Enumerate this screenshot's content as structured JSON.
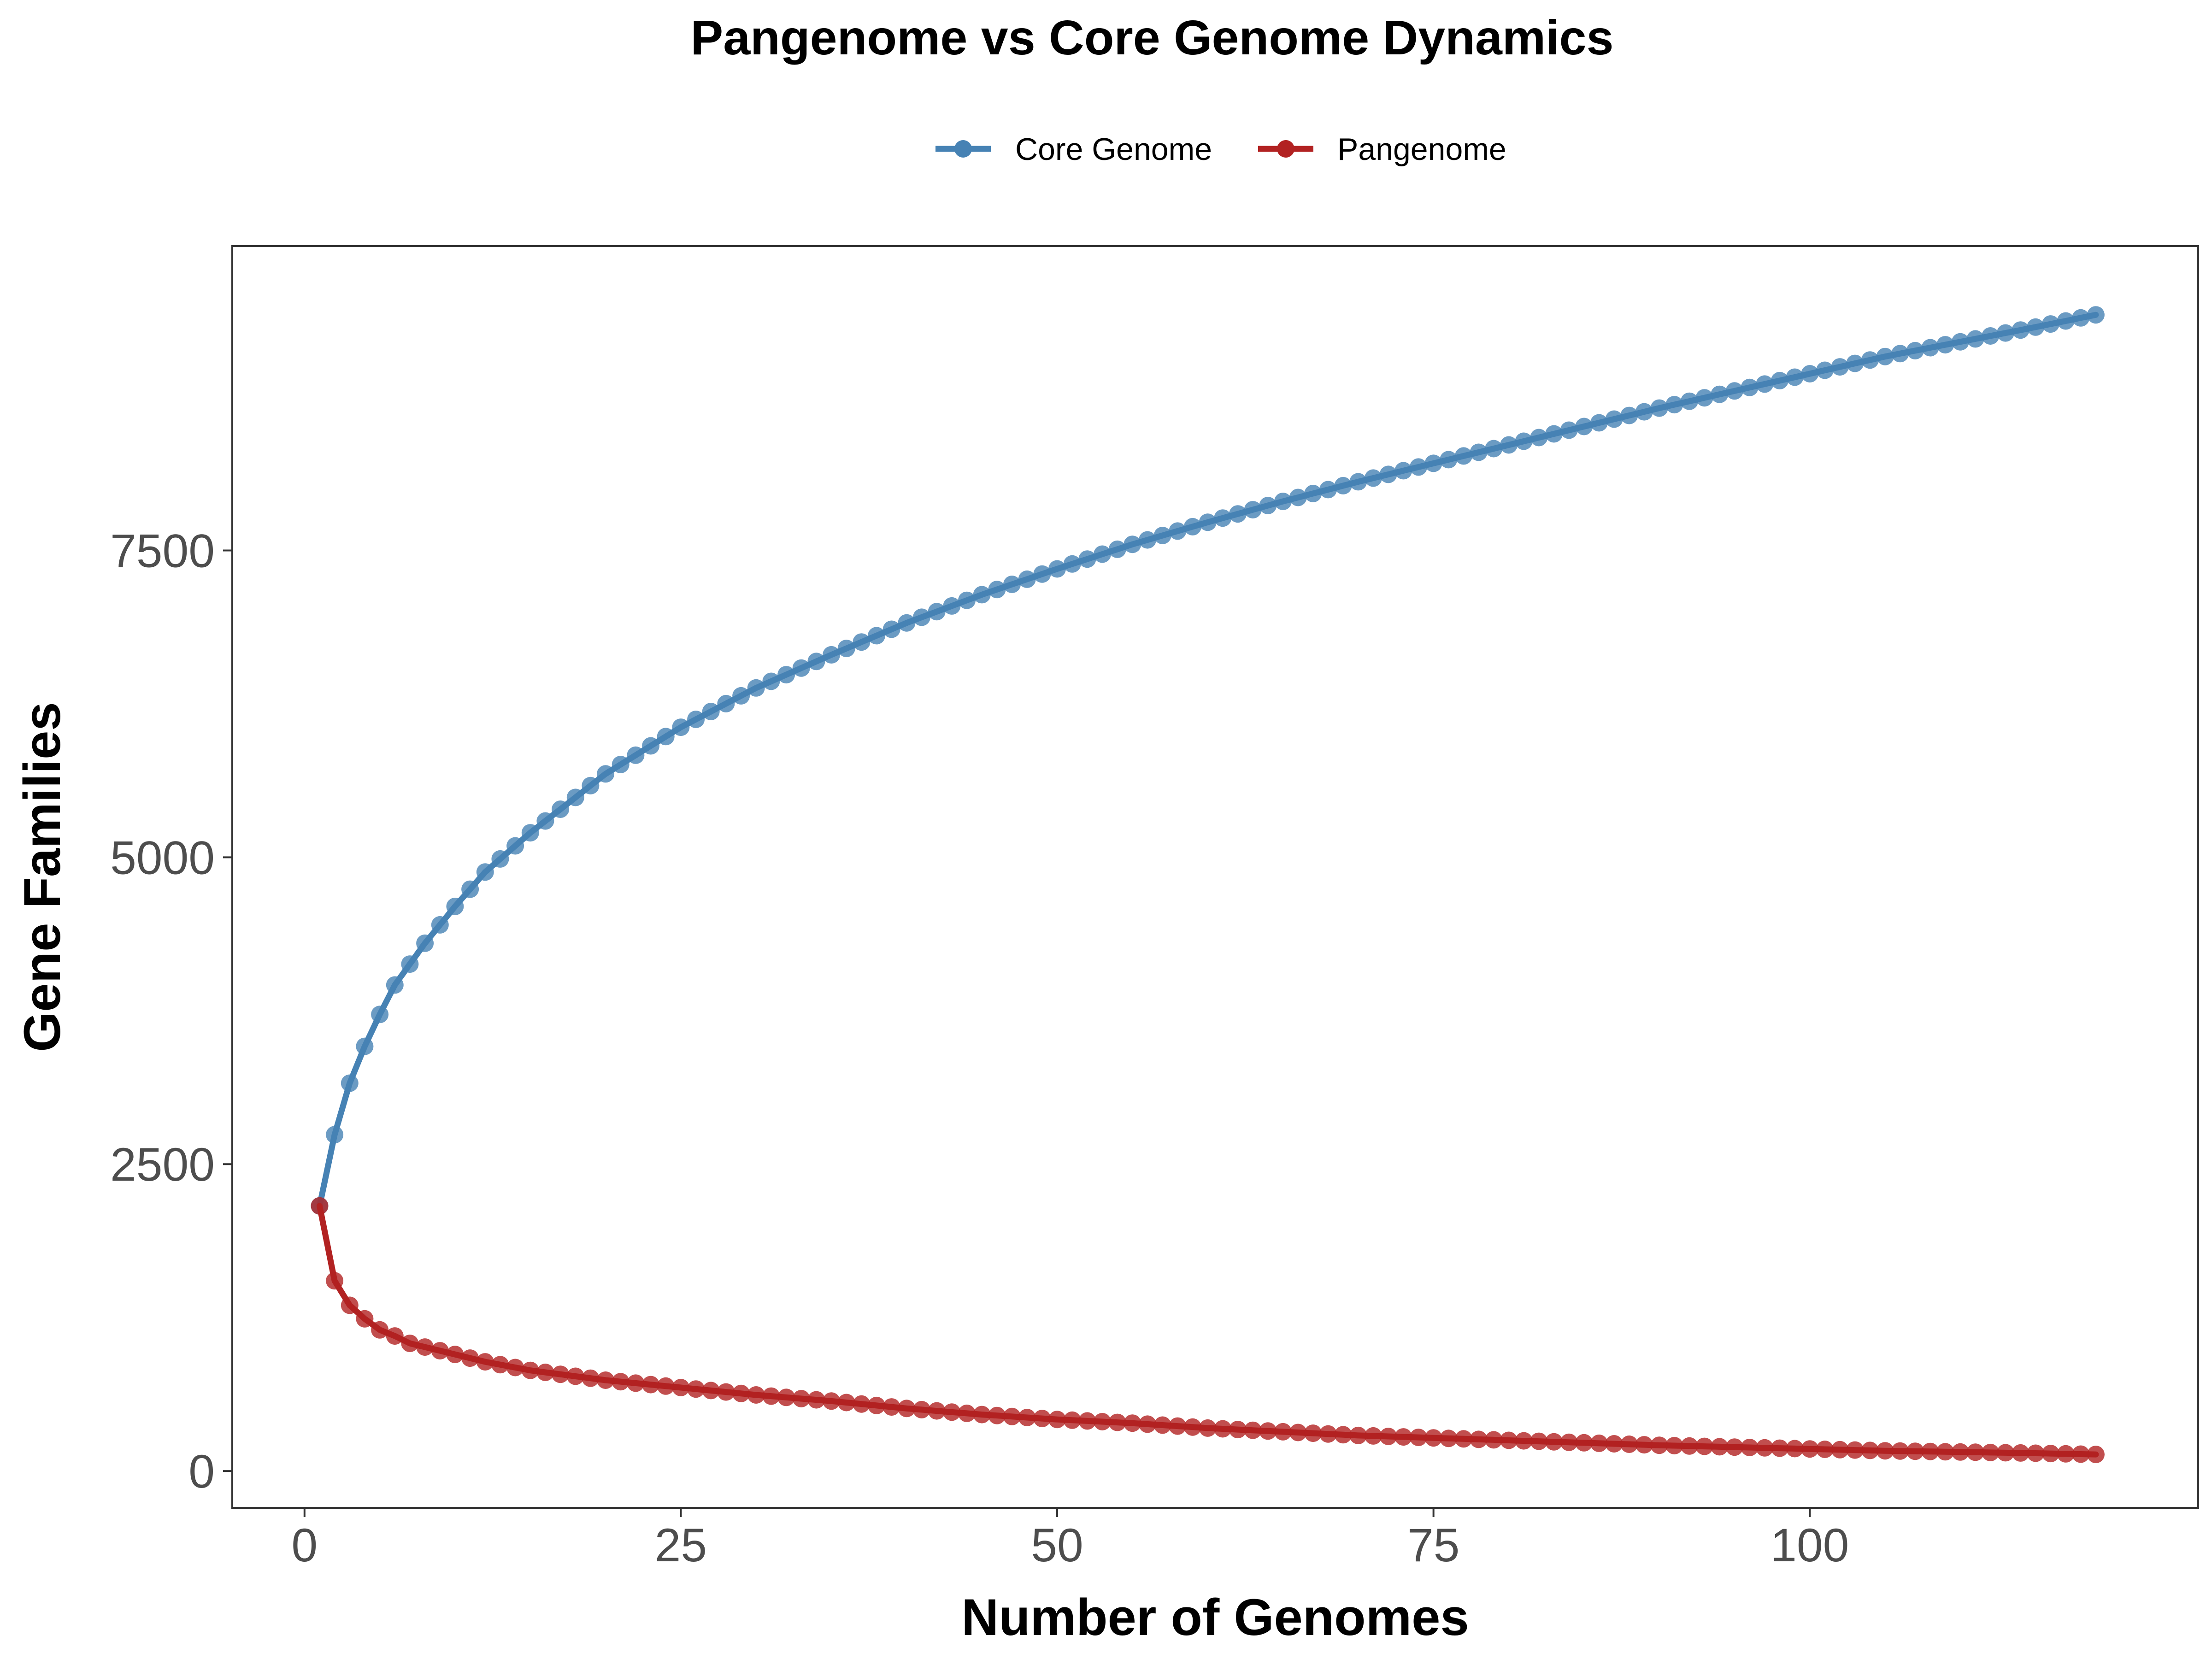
{
  "chart_data": {
    "type": "line",
    "title": "Pangenome vs Core Genome Dynamics",
    "xlabel": "Number of Genomes",
    "ylabel": "Gene Families",
    "xlim": [
      -4.8,
      125.8
    ],
    "ylim": [
      -300,
      9980
    ],
    "x_ticks": [
      0,
      25,
      50,
      75,
      100
    ],
    "y_ticks": [
      0,
      2500,
      5000,
      7500
    ],
    "grid": false,
    "legend_position": "top",
    "series": [
      {
        "name": "Core Genome",
        "color": "#4682B4",
        "x_start": 1,
        "x_end": 119,
        "anchors": [
          [
            1,
            2160
          ],
          [
            2,
            2740
          ],
          [
            3,
            3160
          ],
          [
            4,
            3460
          ],
          [
            5,
            3720
          ],
          [
            6,
            3960
          ],
          [
            8,
            4300
          ],
          [
            10,
            4600
          ],
          [
            12,
            4880
          ],
          [
            15,
            5200
          ],
          [
            20,
            5680
          ],
          [
            25,
            6060
          ],
          [
            30,
            6380
          ],
          [
            35,
            6650
          ],
          [
            40,
            6910
          ],
          [
            45,
            7140
          ],
          [
            50,
            7350
          ],
          [
            55,
            7550
          ],
          [
            60,
            7730
          ],
          [
            65,
            7900
          ],
          [
            70,
            8060
          ],
          [
            75,
            8210
          ],
          [
            80,
            8360
          ],
          [
            85,
            8510
          ],
          [
            90,
            8660
          ],
          [
            95,
            8800
          ],
          [
            100,
            8940
          ],
          [
            105,
            9080
          ],
          [
            110,
            9200
          ],
          [
            115,
            9320
          ],
          [
            119,
            9420
          ]
        ]
      },
      {
        "name": "Pangenome",
        "color": "#B22222",
        "x_start": 1,
        "x_end": 119,
        "anchors": [
          [
            1,
            2160
          ],
          [
            2,
            1550
          ],
          [
            3,
            1350
          ],
          [
            4,
            1240
          ],
          [
            5,
            1150
          ],
          [
            6,
            1100
          ],
          [
            7,
            1040
          ],
          [
            8,
            1010
          ],
          [
            10,
            950
          ],
          [
            12,
            890
          ],
          [
            15,
            820
          ],
          [
            20,
            740
          ],
          [
            25,
            680
          ],
          [
            30,
            620
          ],
          [
            35,
            570
          ],
          [
            40,
            510
          ],
          [
            45,
            460
          ],
          [
            50,
            420
          ],
          [
            55,
            390
          ],
          [
            60,
            350
          ],
          [
            65,
            320
          ],
          [
            70,
            290
          ],
          [
            75,
            270
          ],
          [
            80,
            250
          ],
          [
            85,
            230
          ],
          [
            90,
            210
          ],
          [
            95,
            195
          ],
          [
            100,
            180
          ],
          [
            105,
            165
          ],
          [
            110,
            155
          ],
          [
            115,
            145
          ],
          [
            119,
            135
          ]
        ]
      }
    ]
  }
}
